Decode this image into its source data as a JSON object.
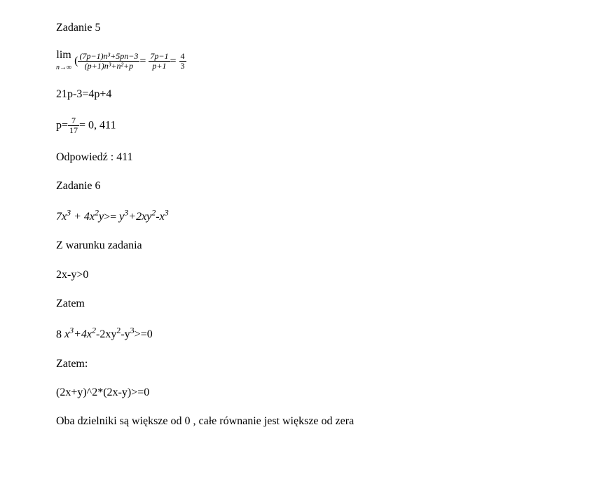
{
  "task5": {
    "title": "Zadanie 5",
    "limit": {
      "lim_label": "lim",
      "lim_sub": "n→∞",
      "open_paren": "(",
      "main_num": "(7p−1)n³+5pn−3",
      "main_den": "(p+1)n³+n²+p",
      "eq1": "=",
      "mid_num": "7p−1",
      "mid_den": "p+1",
      "eq2": "=",
      "rhs_num": "4",
      "rhs_den": "3"
    },
    "eq_line": "21p-3=4p+4",
    "p_line": {
      "p_prefix": "p=",
      "frac_num": "7",
      "frac_den": "17",
      "suffix": "= 0, 411"
    },
    "answer": "Odpowiedź : 411"
  },
  "task6": {
    "title": "Zadanie 6",
    "ineq1_lhs": "7x³ + 4x²y",
    "ineq1_mid": ">=",
    "ineq1_rhs": " y³+2xy²-x³",
    "cond_label": "Z warunku zadania",
    "cond_expr": "2x-y>0",
    "zatem1": "Zatem",
    "expr2_pre": "8 ",
    "expr2_math": "x³+4x²",
    "expr2_post": "-2xy²-y³>=0",
    "zatem2": "Zatem:",
    "expr3": "(2x+y)^2*(2x-y)>=0",
    "concl": "Oba dzielniki są większe od 0 , całe równanie jest większe od zera"
  }
}
